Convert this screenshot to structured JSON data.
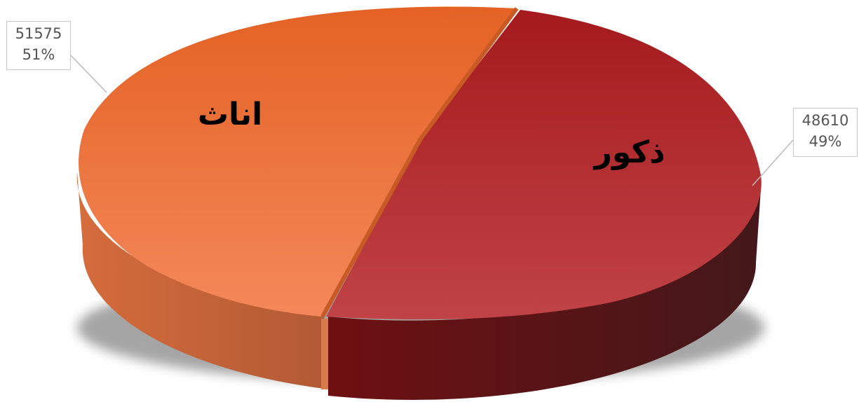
{
  "chart_data": {
    "type": "pie",
    "variant": "3d",
    "title": "",
    "slices": [
      {
        "label": "ذكور",
        "value": 48610,
        "percent": "49%",
        "color": "#b63438"
      },
      {
        "label": "اناث",
        "value": 51575,
        "percent": "51%",
        "color": "#ec7440"
      }
    ],
    "data_labels": [
      {
        "value_text": "51575",
        "percent_text": "51%"
      },
      {
        "value_text": "48610",
        "percent_text": "49%"
      }
    ],
    "legend": "none"
  }
}
